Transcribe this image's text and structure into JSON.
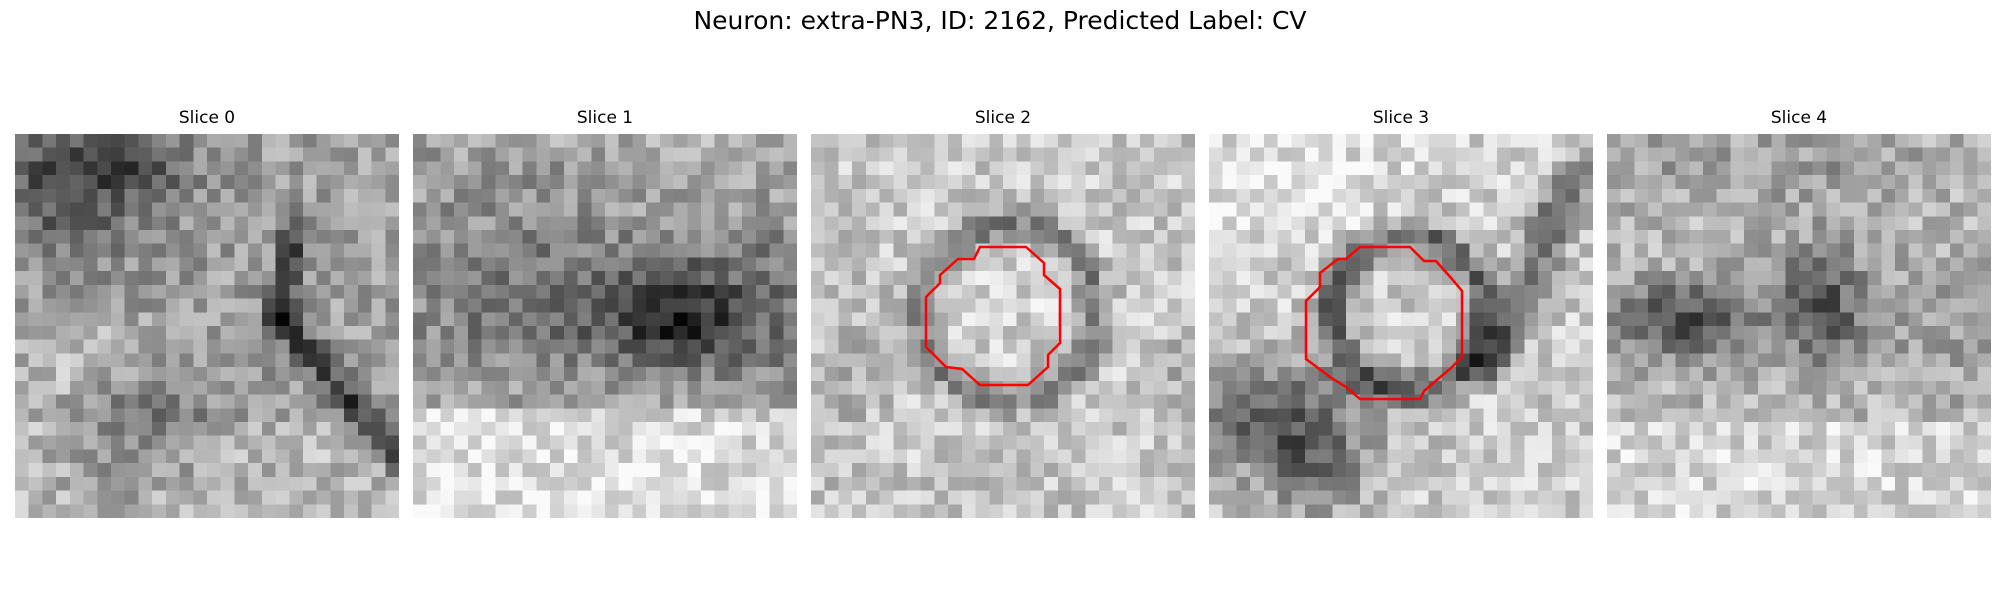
{
  "figure": {
    "title": "Neuron: extra-PN3, ID: 2162, Predicted Label: CV"
  },
  "panels": [
    {
      "title": "Slice 0",
      "has_outline": false
    },
    {
      "title": "Slice 1",
      "has_outline": false
    },
    {
      "title": "Slice 2",
      "has_outline": true
    },
    {
      "title": "Slice 3",
      "has_outline": true
    },
    {
      "title": "Slice 4",
      "has_outline": false
    }
  ],
  "colors": {
    "outline": "#ff0000",
    "colormap": "grayscale"
  }
}
